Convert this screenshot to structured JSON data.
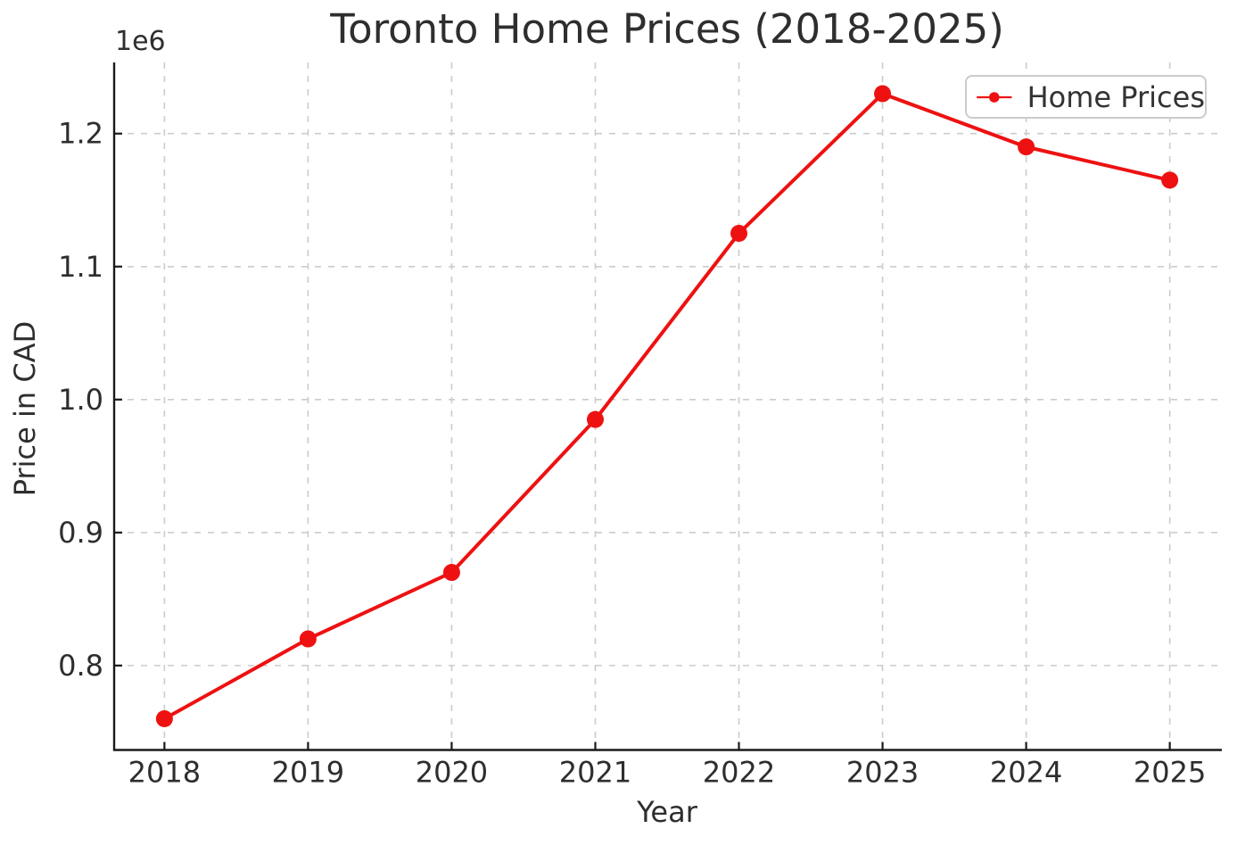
{
  "chart_data": {
    "type": "line",
    "title": "Toronto Home Prices (2018-2025)",
    "xlabel": "Year",
    "ylabel": "Price in CAD",
    "y_offset_label": "1e6",
    "x": [
      2018,
      2019,
      2020,
      2021,
      2022,
      2023,
      2024,
      2025
    ],
    "xtick_labels": [
      "2018",
      "2019",
      "2020",
      "2021",
      "2022",
      "2023",
      "2024",
      "2025"
    ],
    "series": [
      {
        "name": "Home Prices",
        "values": [
          760000,
          820000,
          870000,
          985000,
          1125000,
          1230000,
          1190000,
          1165000
        ],
        "color": "#ee1111",
        "marker": "circle"
      }
    ],
    "xlim": [
      2017.65,
      2025.35
    ],
    "ylim": [
      736500,
      1253500
    ],
    "yticks": [
      800000,
      900000,
      1000000,
      1100000,
      1200000
    ],
    "ytick_labels": [
      "0.8",
      "0.9",
      "1.0",
      "1.1",
      "1.2"
    ],
    "grid": true,
    "grid_style": "dashed",
    "legend_position": "upper right"
  },
  "colors": {
    "series": "#ee1111",
    "grid": "#cccccc",
    "spine": "#1a1a1a",
    "tick_label": "#2e2e2e",
    "legend_border": "#cbcbcb",
    "background": "#ffffff"
  }
}
